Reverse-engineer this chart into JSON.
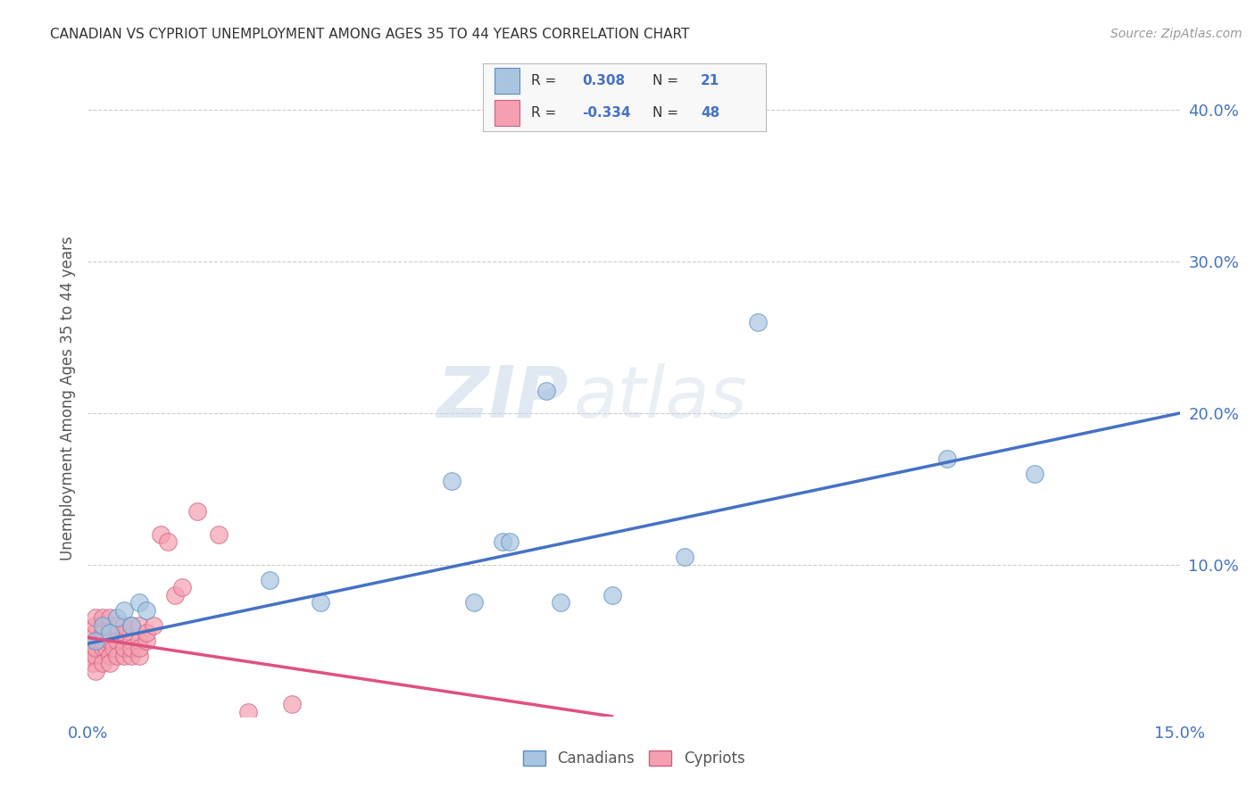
{
  "title": "CANADIAN VS CYPRIOT UNEMPLOYMENT AMONG AGES 35 TO 44 YEARS CORRELATION CHART",
  "source": "Source: ZipAtlas.com",
  "ylabel": "Unemployment Among Ages 35 to 44 years",
  "xlim": [
    0.0,
    0.15
  ],
  "ylim": [
    0.0,
    0.42
  ],
  "canadian_x": [
    0.001,
    0.002,
    0.003,
    0.004,
    0.005,
    0.006,
    0.007,
    0.008,
    0.025,
    0.032,
    0.05,
    0.053,
    0.057,
    0.058,
    0.063,
    0.065,
    0.072,
    0.082,
    0.092,
    0.118,
    0.13
  ],
  "canadian_y": [
    0.05,
    0.06,
    0.055,
    0.065,
    0.07,
    0.06,
    0.075,
    0.07,
    0.09,
    0.075,
    0.155,
    0.075,
    0.115,
    0.115,
    0.215,
    0.075,
    0.08,
    0.105,
    0.26,
    0.17,
    0.16
  ],
  "cypriot_x": [
    0.0005,
    0.0007,
    0.001,
    0.001,
    0.001,
    0.001,
    0.001,
    0.001,
    0.001,
    0.0015,
    0.002,
    0.002,
    0.002,
    0.002,
    0.002,
    0.0025,
    0.003,
    0.003,
    0.003,
    0.003,
    0.003,
    0.0035,
    0.004,
    0.004,
    0.004,
    0.005,
    0.005,
    0.005,
    0.005,
    0.006,
    0.006,
    0.006,
    0.006,
    0.007,
    0.007,
    0.007,
    0.007,
    0.008,
    0.008,
    0.009,
    0.01,
    0.011,
    0.012,
    0.013,
    0.015,
    0.018,
    0.022,
    0.028
  ],
  "cypriot_y": [
    0.04,
    0.035,
    0.05,
    0.055,
    0.04,
    0.06,
    0.03,
    0.045,
    0.065,
    0.05,
    0.045,
    0.055,
    0.035,
    0.065,
    0.05,
    0.045,
    0.05,
    0.04,
    0.06,
    0.035,
    0.065,
    0.045,
    0.05,
    0.04,
    0.06,
    0.055,
    0.04,
    0.06,
    0.045,
    0.05,
    0.04,
    0.06,
    0.045,
    0.05,
    0.04,
    0.06,
    0.045,
    0.05,
    0.055,
    0.06,
    0.12,
    0.115,
    0.08,
    0.085,
    0.135,
    0.12,
    0.003,
    0.008
  ],
  "canadian_color": "#a8c4e0",
  "cypriot_color": "#f4a0b0",
  "canadian_edge": "#5b8ec4",
  "cypriot_edge": "#d06080",
  "trend_canadian_color": "#4472c4",
  "trend_cypriot_color": "#e05080",
  "R_canadian": "0.308",
  "N_canadian": "21",
  "R_cypriot": "-0.334",
  "N_cypriot": "48",
  "watermark_zip": "ZIP",
  "watermark_atlas": "atlas",
  "background_color": "#ffffff",
  "grid_color": "#cccccc",
  "legend_color_text": "#4472c4",
  "label_color": "#4472c4"
}
